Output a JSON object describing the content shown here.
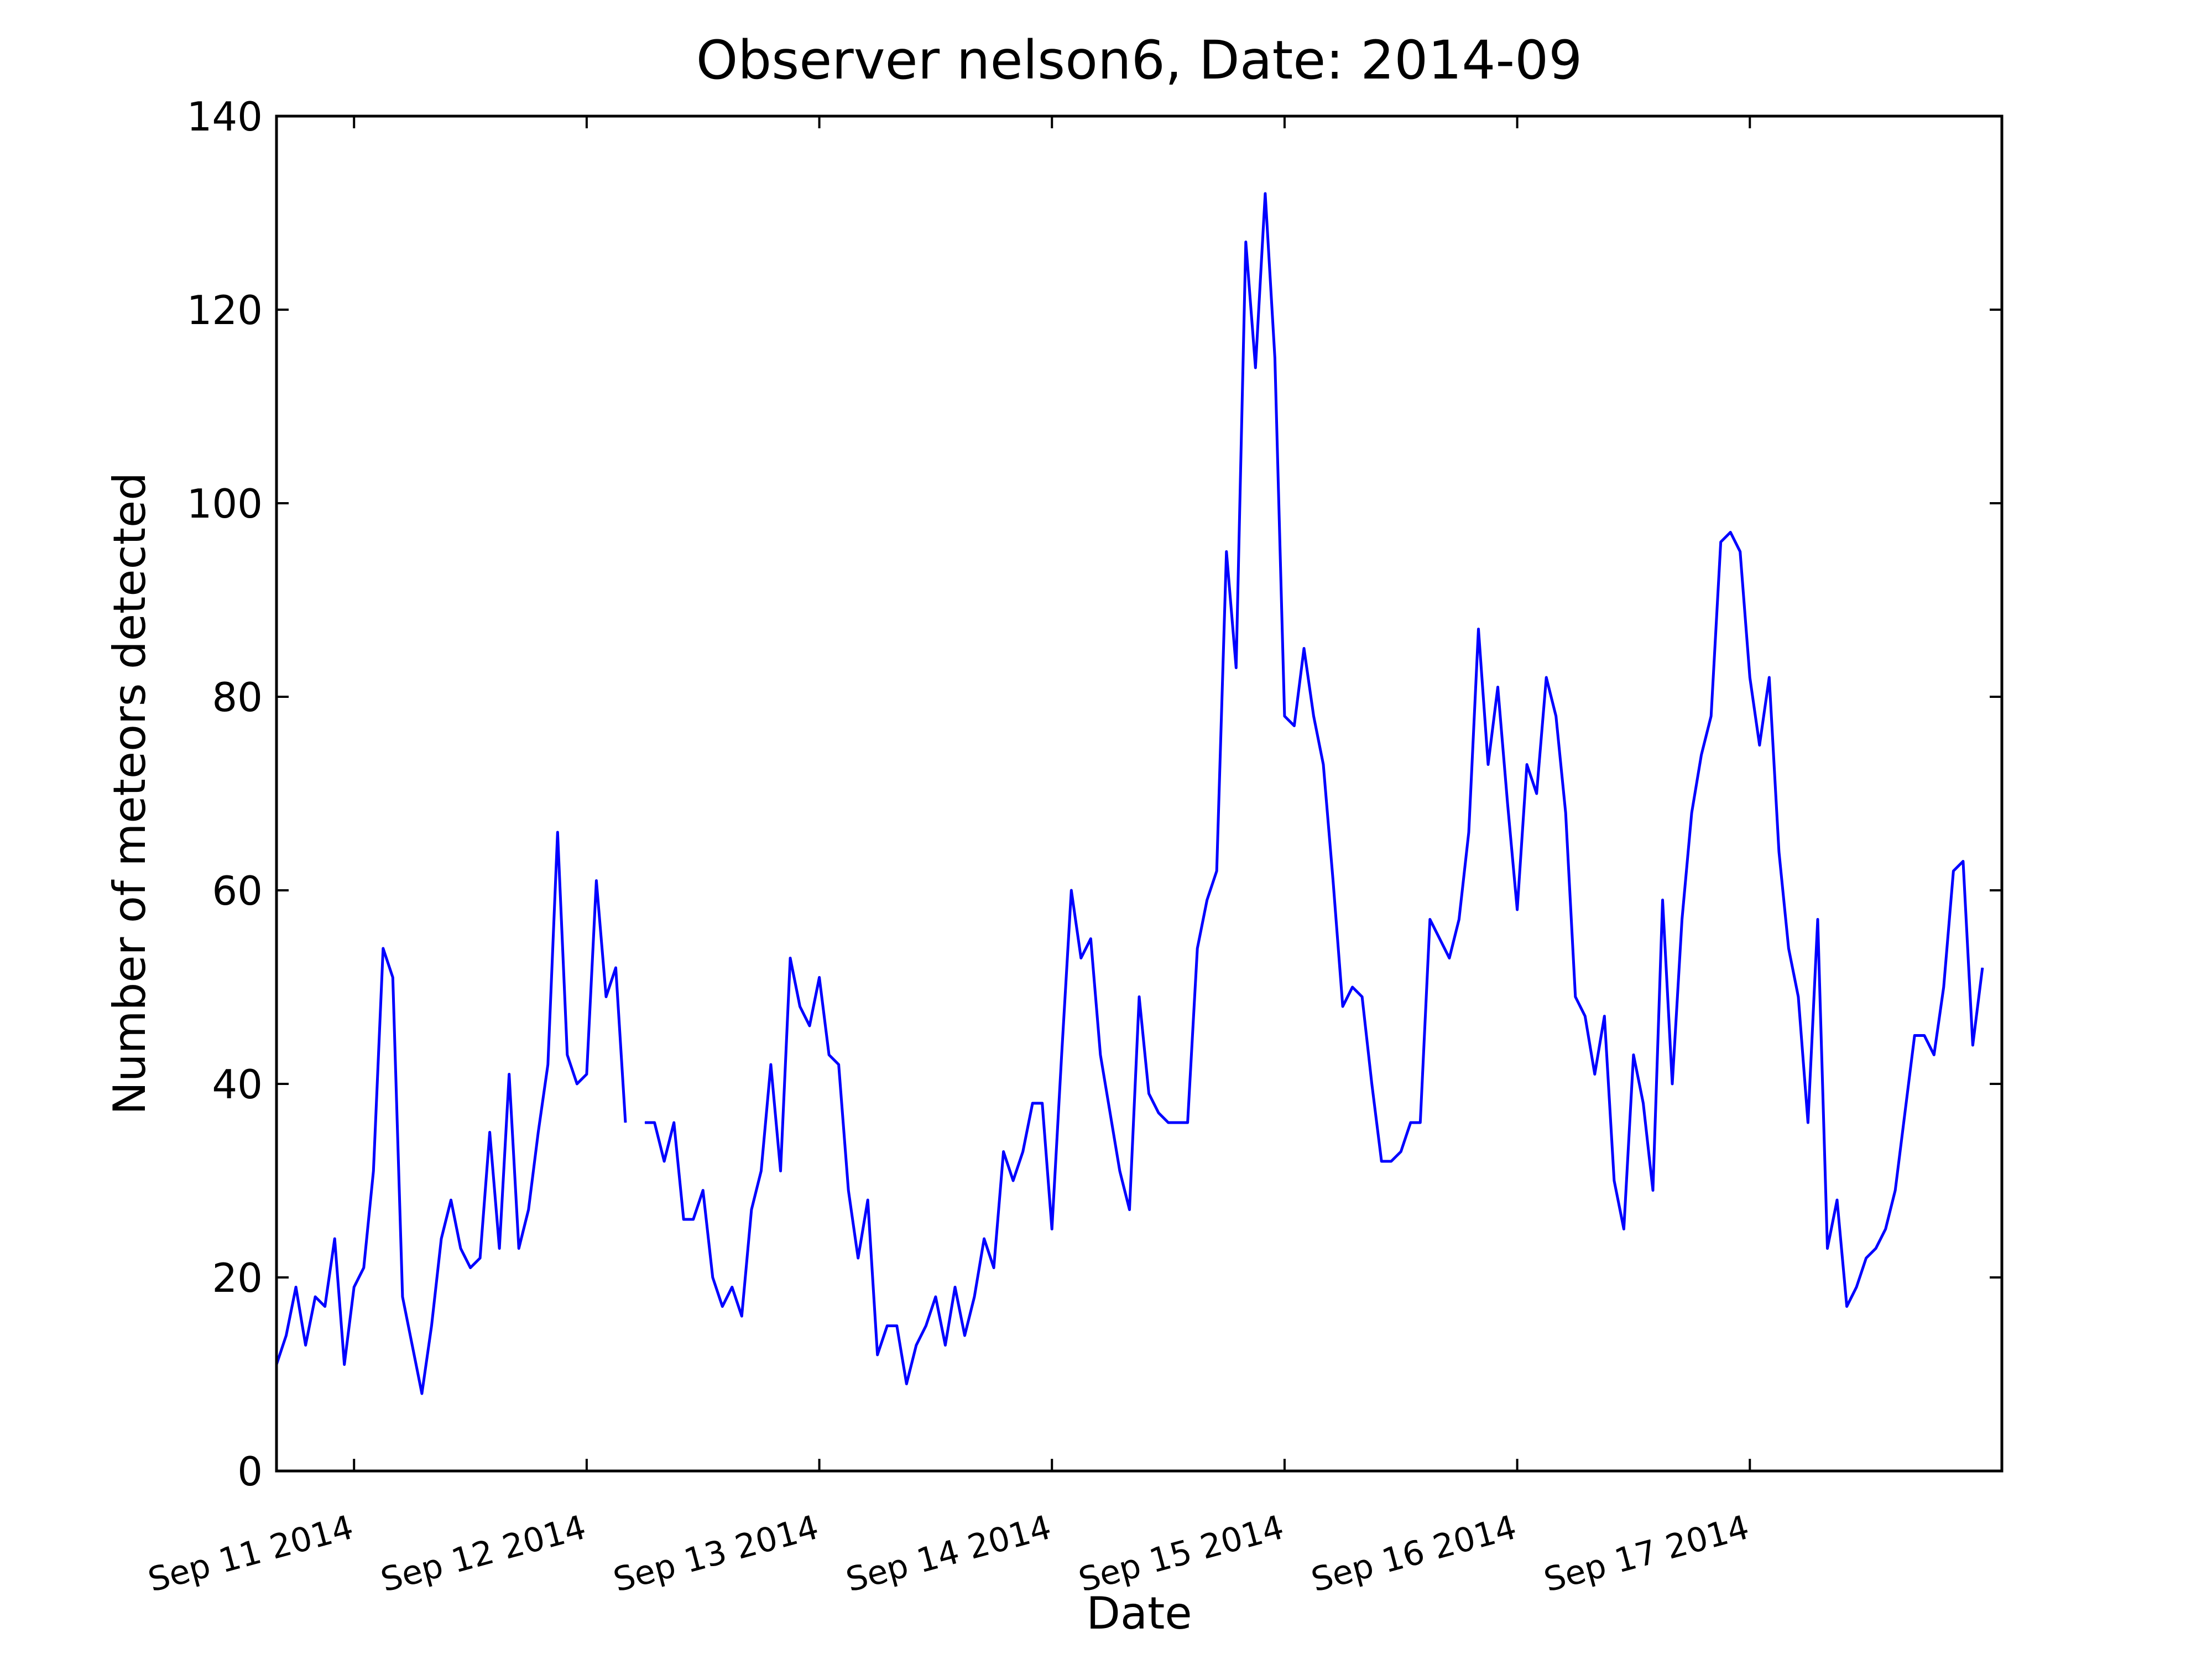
{
  "chart_data": {
    "type": "line",
    "title": "Observer nelson6, Date: 2014-09",
    "xlabel": "Date",
    "ylabel": "Number of meteors detected",
    "ylim": [
      0,
      140
    ],
    "xlim": [
      "2014-09-10 16:00",
      "2014-09-18 02:00"
    ],
    "yticks": [
      0,
      20,
      40,
      60,
      80,
      100,
      120,
      140
    ],
    "xticks": [
      {
        "date": "2014-09-11 00:00",
        "label": "Sep 11 2014"
      },
      {
        "date": "2014-09-12 00:00",
        "label": "Sep 12 2014"
      },
      {
        "date": "2014-09-13 00:00",
        "label": "Sep 13 2014"
      },
      {
        "date": "2014-09-14 00:00",
        "label": "Sep 14 2014"
      },
      {
        "date": "2014-09-15 00:00",
        "label": "Sep 15 2014"
      },
      {
        "date": "2014-09-16 00:00",
        "label": "Sep 16 2014"
      },
      {
        "date": "2014-09-17 00:00",
        "label": "Sep 17 2014"
      }
    ],
    "grid": false,
    "line_color": "#0000ff",
    "series": [
      {
        "segments": [
          {
            "start": "2014-09-10 16:00",
            "step_hours": 1,
            "values": [
              11,
              14,
              19,
              13,
              18,
              17,
              24,
              11,
              19,
              21,
              31,
              54,
              51,
              18,
              13,
              8,
              15,
              24,
              28,
              23,
              21,
              22,
              35,
              23,
              41,
              23,
              27,
              35,
              42,
              66,
              43,
              40,
              41,
              61,
              49,
              52,
              36
            ]
          },
          {
            "start": "2014-09-12 06:00",
            "step_hours": 1,
            "values": [
              36,
              36,
              32,
              36,
              26,
              26,
              29,
              20,
              17,
              19,
              16,
              27,
              31,
              42,
              31,
              53,
              48,
              46,
              51,
              43,
              42,
              29,
              22,
              28,
              12,
              15,
              15,
              9,
              13,
              15,
              18,
              13,
              19,
              14,
              18,
              24,
              21,
              33,
              30,
              33,
              38,
              38,
              25,
              43,
              60,
              53,
              55,
              43,
              37,
              31,
              27,
              49,
              39,
              37,
              36,
              36,
              36,
              54,
              59,
              62,
              95,
              83,
              127,
              114,
              132,
              115,
              78,
              77,
              85,
              78,
              73,
              61,
              48,
              50,
              49,
              40,
              32,
              32,
              33,
              36,
              36,
              57,
              55,
              53,
              57,
              66,
              87,
              73,
              81,
              69,
              58,
              73,
              70,
              82,
              78,
              68,
              49,
              47,
              41,
              47,
              30,
              25,
              43,
              38,
              29,
              59,
              40,
              57,
              68,
              74,
              78,
              96,
              97,
              95,
              82,
              75,
              82,
              64,
              54,
              49,
              36,
              57,
              23,
              28,
              17,
              19,
              22,
              23,
              25,
              29,
              37,
              45,
              45,
              43,
              50,
              62,
              63,
              44,
              52
            ]
          }
        ]
      }
    ]
  }
}
